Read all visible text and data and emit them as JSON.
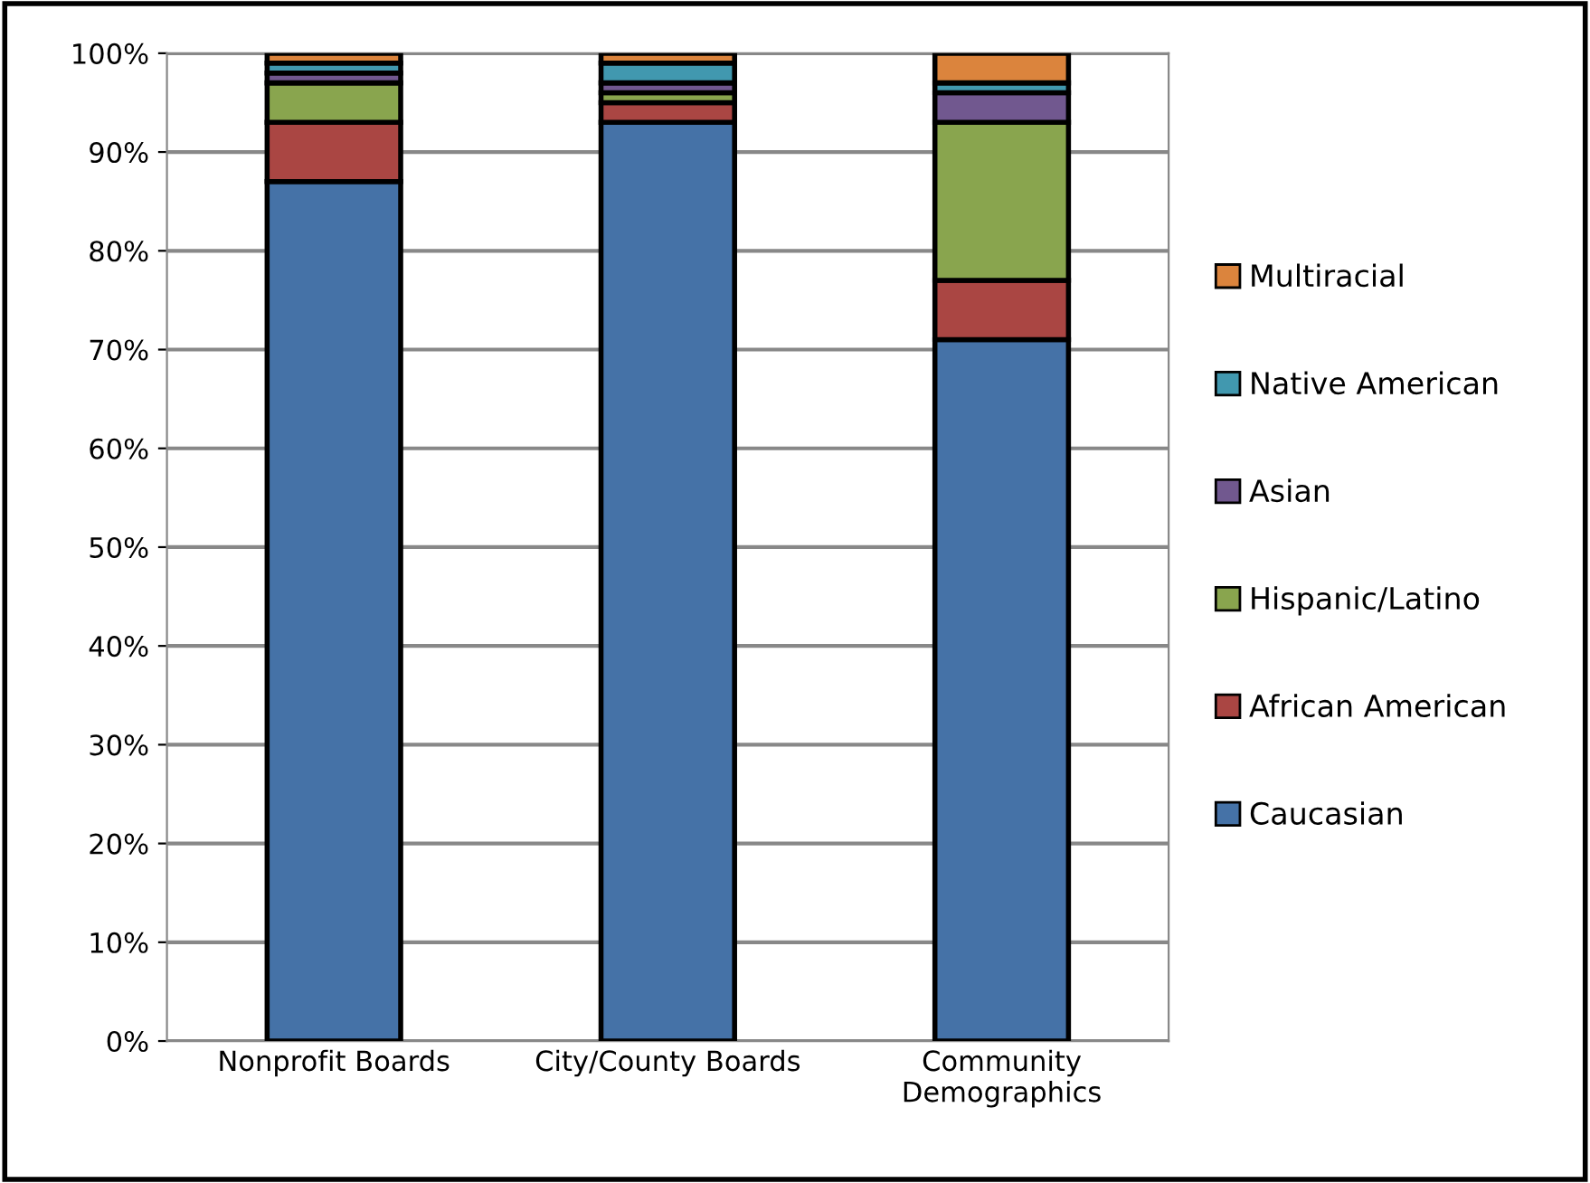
{
  "chart_data": {
    "type": "bar",
    "stacked": true,
    "categories": [
      "Nonprofit Boards",
      "City/County Boards",
      "Community\nDemographics"
    ],
    "series": [
      {
        "name": "Caucasian",
        "color": "#4572a7",
        "values": [
          87,
          93,
          71
        ]
      },
      {
        "name": "African American",
        "color": "#aa4643",
        "values": [
          6,
          2,
          6
        ]
      },
      {
        "name": "Hispanic/Latino",
        "color": "#89a54e",
        "values": [
          4,
          1,
          16
        ]
      },
      {
        "name": "Asian",
        "color": "#71588f",
        "values": [
          1,
          1,
          3
        ]
      },
      {
        "name": "Native American",
        "color": "#4198af",
        "values": [
          1,
          2,
          1
        ]
      },
      {
        "name": "Multiracial",
        "color": "#db843d",
        "values": [
          1,
          1,
          3
        ]
      }
    ],
    "ylim": [
      0,
      100
    ],
    "yticks": [
      {
        "value": 0,
        "label": "0%"
      },
      {
        "value": 10,
        "label": "10%"
      },
      {
        "value": 20,
        "label": "20%"
      },
      {
        "value": 30,
        "label": "30%"
      },
      {
        "value": 40,
        "label": "40%"
      },
      {
        "value": 50,
        "label": "50%"
      },
      {
        "value": 60,
        "label": "60%"
      },
      {
        "value": 70,
        "label": "70%"
      },
      {
        "value": 80,
        "label": "80%"
      },
      {
        "value": 90,
        "label": "90%"
      },
      {
        "value": 100,
        "label": "100%"
      }
    ],
    "grid": "y",
    "legend": "right"
  }
}
